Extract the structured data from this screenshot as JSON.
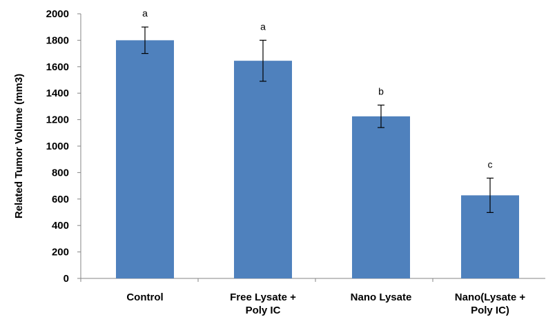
{
  "chart_data": {
    "type": "bar",
    "title": "",
    "xlabel": "",
    "ylabel": "Related Tumor Volume (mm3)",
    "ylim": [
      0,
      2000
    ],
    "ytick_step": 200,
    "grid": false,
    "legend": "none",
    "bar_color": "#4f81bd",
    "categories": [
      [
        "Control"
      ],
      [
        "Free Lysate +",
        "Poly IC"
      ],
      [
        "Nano Lysate"
      ],
      [
        "Nano(Lysate +",
        "Poly IC)"
      ]
    ],
    "values": [
      1800,
      1645,
      1225,
      628
    ],
    "error": [
      100,
      155,
      85,
      130
    ],
    "significance_labels": [
      "a",
      "a",
      "b",
      "c"
    ]
  }
}
